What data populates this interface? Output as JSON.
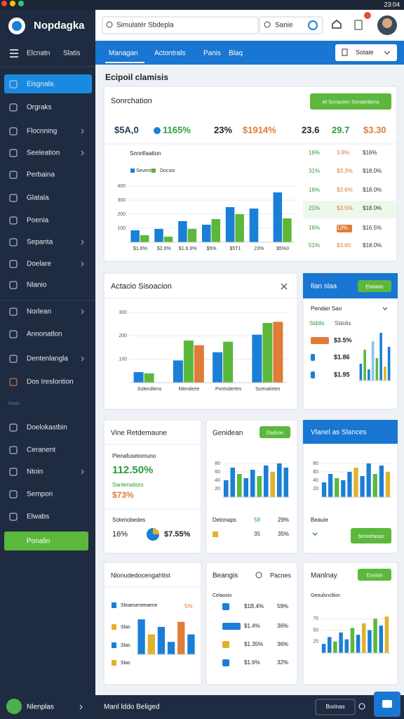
{
  "status": {
    "time": "23:04"
  },
  "sidebar": {
    "brand": "Nopdagka",
    "tabs": [
      "Elcnatn",
      "Slatis"
    ],
    "items": [
      "Eisgnala",
      "Orgraks",
      "Flocnning",
      "Seeleation",
      "Perbaina",
      "Glatala",
      "Poenia",
      "Sepanta",
      "Doelare",
      "Nlanio",
      "Norlean",
      "Annonatlon",
      "Dentenlangla",
      "Dos Ireslontion"
    ],
    "section": "Maals",
    "items2": [
      "Doelokastbin",
      "Ceranent",
      "Ntoin",
      "Sempon",
      "Elwabs"
    ],
    "cta": "Ponalin",
    "user": "Nlenplas"
  },
  "header": {
    "search": "Simulatér Sbdepla",
    "search2": "Sanie"
  },
  "nav": {
    "tabs": [
      "Managan",
      "Actontrals",
      "Panis",
      "Blaq"
    ],
    "dropdown": "Sotaie"
  },
  "page_title": "Ecipoil clamisis",
  "overview": {
    "title": "Sonrchation",
    "button": "Al Scnasion Sonatntiens",
    "kpis": [
      "$5A,0",
      "1165%",
      "23%",
      "$1914%",
      "23.6",
      "29.7",
      "$3.30"
    ],
    "chart": {
      "type": "bar",
      "title": "Snnnfiaation",
      "categories": [
        "$1.6%",
        "$2.6%",
        "$1.6.6%",
        "$5%",
        "$5T1",
        "23%",
        "$5%3"
      ],
      "series": [
        {
          "name": "Sevent",
          "color": "#1a7fd6",
          "values": [
            85,
            95,
            150,
            125,
            250,
            240,
            355
          ]
        },
        {
          "name": "Docsio",
          "color": "#5cb83c",
          "values": [
            50,
            40,
            95,
            165,
            200,
            null,
            170
          ]
        }
      ],
      "ylim": [
        0,
        450
      ],
      "yticks": [
        100,
        200,
        300,
        400
      ]
    },
    "table": [
      [
        "16%",
        "3.8%",
        "$16%"
      ],
      [
        "31%",
        "$3.3%",
        "$18.0%"
      ],
      [
        "16%",
        "$3.6%",
        "$18.0%"
      ],
      [
        "21%",
        "$3.5%",
        "$18.0%"
      ],
      [
        "16%",
        "13%",
        "$16.5%"
      ],
      [
        "51%",
        "$3.60",
        "$18.0%"
      ]
    ]
  },
  "activity": {
    "title": "Actacio Sisoacion",
    "chart": {
      "type": "bar",
      "categories": [
        "Solendiens",
        "Nlenderie",
        "Pontsdertes",
        "Scenatirten"
      ],
      "series": [
        {
          "color": "#1a7fd6",
          "values": [
            45,
            95,
            130,
            205
          ]
        },
        {
          "color": "#5cb83c",
          "values": [
            40,
            180,
            175,
            255
          ]
        },
        {
          "color": "#e07b39",
          "values": [
            null,
            160,
            null,
            260
          ]
        }
      ],
      "ylim": [
        0,
        300
      ],
      "yticks": [
        100,
        200,
        300
      ]
    }
  },
  "plan": {
    "title": "Ilan slaa",
    "button": "Elatatas",
    "subtitle": "Pendan Sao",
    "row_heads": [
      "Slddis",
      "Sldolis"
    ],
    "rows": [
      "$3.5%",
      "$1.86",
      "$1.95"
    ],
    "chart": {
      "type": "bar",
      "values": [
        30,
        55,
        20,
        70,
        40,
        85,
        25,
        60
      ],
      "colors": [
        "#1a7fd6",
        "#5cb83c",
        "#1a7fd6",
        "#8fc1ee",
        "#5cb83c",
        "#1a7fd6",
        "#e0b22c",
        "#1a7fd6"
      ],
      "ylim": [
        0,
        100
      ]
    }
  },
  "performance": {
    "title": "Vine Retdemaune",
    "label1": "Plenafusetomuno",
    "value1": "112.50%",
    "label2": "Sanlenatiors",
    "value2": "$73%",
    "label3": "Sotenobedes",
    "value3": "16%",
    "value4": "$7.55%"
  },
  "general": {
    "title": "Genidean",
    "button": "Daduse",
    "chart": {
      "type": "bar",
      "values": [
        40,
        70,
        55,
        45,
        65,
        50,
        75,
        60,
        80,
        70
      ],
      "colors": [
        "#1a7fd6",
        "#1a7fd6",
        "#5cb83c",
        "#1a7fd6",
        "#1a7fd6",
        "#5cb83c",
        "#1a7fd6",
        "#e0b22c",
        "#1a7fd6",
        "#1a7fd6"
      ],
      "ylim": [
        0,
        100
      ],
      "yticks": [
        20,
        40,
        60,
        80
      ]
    },
    "footer_label": "Delonaps",
    "footer": [
      [
        "58",
        "29%"
      ],
      [
        "35",
        "35%"
      ]
    ]
  },
  "visual": {
    "title": "Vlanel as Slances",
    "chart": {
      "type": "bar",
      "values": [
        35,
        55,
        45,
        40,
        60,
        70,
        50,
        80,
        55,
        75,
        60
      ],
      "colors": [
        "#1a7fd6",
        "#1a7fd6",
        "#5cb83c",
        "#1a7fd6",
        "#1a7fd6",
        "#e0b22c",
        "#1a7fd6",
        "#1a7fd6",
        "#5cb83c",
        "#1a7fd6",
        "#e0b22c"
      ],
      "ylim": [
        0,
        100
      ],
      "yticks": [
        20,
        40,
        60,
        80
      ]
    },
    "label": "Beauie",
    "button": "Senoefanas"
  },
  "list": {
    "title": "Nlonudedocengahtist",
    "rows": [
      "Sleaeseneeaene",
      "Slas",
      "Slas",
      "Slas"
    ],
    "value": "5%",
    "chart": {
      "type": "bar",
      "values": [
        70,
        40,
        55,
        25,
        65,
        40
      ],
      "colors": [
        "#1a7fd6",
        "#e0b22c",
        "#1a7fd6",
        "#1a7fd6",
        "#e07b39",
        "#1a7fd6"
      ],
      "ylim": [
        0,
        80
      ]
    }
  },
  "brands": {
    "title": "Beangis",
    "search": "Pacnes",
    "subtitle": "Celaosio",
    "rows": [
      [
        "$1B.4%",
        "59%"
      ],
      [
        "$1.4%",
        "36%"
      ],
      [
        "$1.35%",
        "36%"
      ],
      [
        "$1.6%",
        "32%"
      ]
    ]
  },
  "monthly": {
    "title": "Manlnay",
    "button": "Esnoos",
    "subtitle": "Geoulsncllion",
    "chart": {
      "type": "bar",
      "values": [
        20,
        35,
        25,
        45,
        30,
        55,
        40,
        65,
        50,
        75,
        60,
        80
      ],
      "colors": [
        "#1a7fd6",
        "#1a7fd6",
        "#5cb83c",
        "#1a7fd6",
        "#1a7fd6",
        "#5cb83c",
        "#1a7fd6",
        "#e0b22c",
        "#1a7fd6",
        "#5cb83c",
        "#1a7fd6",
        "#e0b22c"
      ],
      "ylim": [
        0,
        100
      ],
      "yticks": [
        25,
        50,
        75
      ]
    }
  },
  "bottom": {
    "text": "Manl lddo Beliged",
    "button": "Borinas"
  }
}
